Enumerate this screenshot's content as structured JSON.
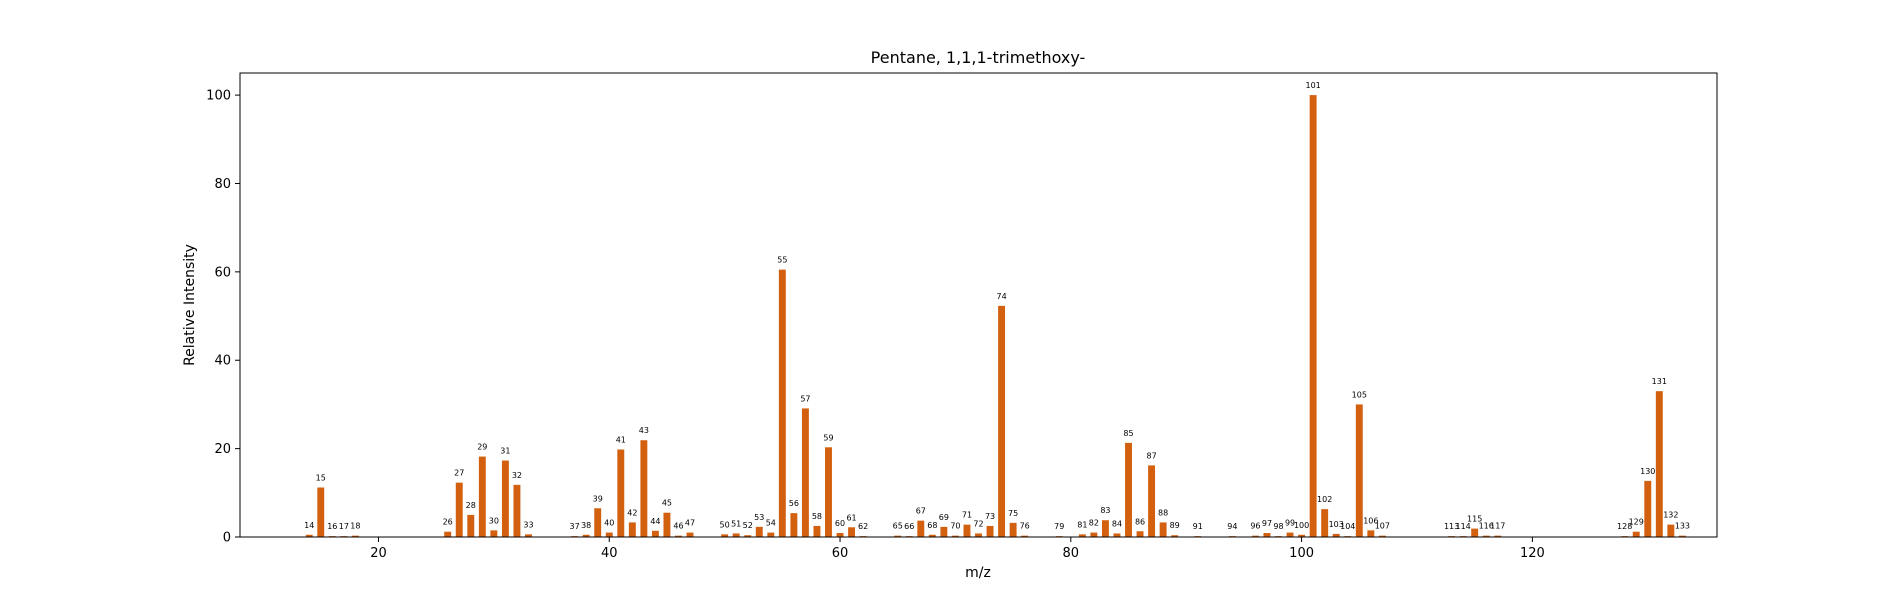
{
  "chart_data": {
    "type": "bar",
    "title": "Pentane, 1,1,1-trimethoxy-",
    "xlabel": "m/z",
    "ylabel": "Relative Intensity",
    "xlim": [
      8,
      136
    ],
    "ylim": [
      0,
      105
    ],
    "xticks": [
      20,
      40,
      60,
      80,
      100,
      120
    ],
    "yticks": [
      0,
      20,
      40,
      60,
      80,
      100
    ],
    "grid": false,
    "bar_color": "#d2600f",
    "peaks": [
      {
        "mz": 14,
        "intensity": 0.5
      },
      {
        "mz": 15,
        "intensity": 11.2
      },
      {
        "mz": 16,
        "intensity": 0.2
      },
      {
        "mz": 17,
        "intensity": 0.2
      },
      {
        "mz": 18,
        "intensity": 0.3
      },
      {
        "mz": 26,
        "intensity": 1.2
      },
      {
        "mz": 27,
        "intensity": 12.3
      },
      {
        "mz": 28,
        "intensity": 5.0
      },
      {
        "mz": 29,
        "intensity": 18.2
      },
      {
        "mz": 30,
        "intensity": 1.5
      },
      {
        "mz": 31,
        "intensity": 17.3
      },
      {
        "mz": 32,
        "intensity": 11.8
      },
      {
        "mz": 33,
        "intensity": 0.6
      },
      {
        "mz": 37,
        "intensity": 0.2
      },
      {
        "mz": 38,
        "intensity": 0.5
      },
      {
        "mz": 39,
        "intensity": 6.5
      },
      {
        "mz": 40,
        "intensity": 1.0
      },
      {
        "mz": 41,
        "intensity": 19.8
      },
      {
        "mz": 42,
        "intensity": 3.3
      },
      {
        "mz": 43,
        "intensity": 21.9
      },
      {
        "mz": 44,
        "intensity": 1.4
      },
      {
        "mz": 45,
        "intensity": 5.5
      },
      {
        "mz": 46,
        "intensity": 0.3
      },
      {
        "mz": 47,
        "intensity": 1.0
      },
      {
        "mz": 50,
        "intensity": 0.6
      },
      {
        "mz": 51,
        "intensity": 0.8
      },
      {
        "mz": 52,
        "intensity": 0.4
      },
      {
        "mz": 53,
        "intensity": 2.3
      },
      {
        "mz": 54,
        "intensity": 1.0
      },
      {
        "mz": 55,
        "intensity": 60.5
      },
      {
        "mz": 56,
        "intensity": 5.4
      },
      {
        "mz": 57,
        "intensity": 29.1
      },
      {
        "mz": 58,
        "intensity": 2.5
      },
      {
        "mz": 59,
        "intensity": 20.3
      },
      {
        "mz": 60,
        "intensity": 0.9
      },
      {
        "mz": 61,
        "intensity": 2.2
      },
      {
        "mz": 62,
        "intensity": 0.2
      },
      {
        "mz": 65,
        "intensity": 0.3
      },
      {
        "mz": 66,
        "intensity": 0.2
      },
      {
        "mz": 67,
        "intensity": 3.7
      },
      {
        "mz": 68,
        "intensity": 0.5
      },
      {
        "mz": 69,
        "intensity": 2.3
      },
      {
        "mz": 70,
        "intensity": 0.3
      },
      {
        "mz": 71,
        "intensity": 2.8
      },
      {
        "mz": 72,
        "intensity": 0.8
      },
      {
        "mz": 73,
        "intensity": 2.5
      },
      {
        "mz": 74,
        "intensity": 52.3
      },
      {
        "mz": 75,
        "intensity": 3.2
      },
      {
        "mz": 76,
        "intensity": 0.3
      },
      {
        "mz": 79,
        "intensity": 0.2
      },
      {
        "mz": 81,
        "intensity": 0.6
      },
      {
        "mz": 82,
        "intensity": 1.0
      },
      {
        "mz": 83,
        "intensity": 3.8
      },
      {
        "mz": 84,
        "intensity": 0.8
      },
      {
        "mz": 85,
        "intensity": 21.3
      },
      {
        "mz": 86,
        "intensity": 1.3
      },
      {
        "mz": 87,
        "intensity": 16.2
      },
      {
        "mz": 88,
        "intensity": 3.3
      },
      {
        "mz": 89,
        "intensity": 0.4
      },
      {
        "mz": 91,
        "intensity": 0.2
      },
      {
        "mz": 94,
        "intensity": 0.2
      },
      {
        "mz": 96,
        "intensity": 0.3
      },
      {
        "mz": 97,
        "intensity": 0.9
      },
      {
        "mz": 98,
        "intensity": 0.2
      },
      {
        "mz": 99,
        "intensity": 1.0
      },
      {
        "mz": 100,
        "intensity": 0.5
      },
      {
        "mz": 101,
        "intensity": 100
      },
      {
        "mz": 102,
        "intensity": 6.3
      },
      {
        "mz": 103,
        "intensity": 0.7
      },
      {
        "mz": 104,
        "intensity": 0.2
      },
      {
        "mz": 105,
        "intensity": 30.0
      },
      {
        "mz": 106,
        "intensity": 1.5
      },
      {
        "mz": 107,
        "intensity": 0.3
      },
      {
        "mz": 113,
        "intensity": 0.2
      },
      {
        "mz": 114,
        "intensity": 0.2
      },
      {
        "mz": 115,
        "intensity": 1.9
      },
      {
        "mz": 116,
        "intensity": 0.3
      },
      {
        "mz": 117,
        "intensity": 0.3
      },
      {
        "mz": 128,
        "intensity": 0.2
      },
      {
        "mz": 129,
        "intensity": 1.2
      },
      {
        "mz": 130,
        "intensity": 12.7
      },
      {
        "mz": 131,
        "intensity": 33.0
      },
      {
        "mz": 132,
        "intensity": 2.8
      },
      {
        "mz": 133,
        "intensity": 0.3
      }
    ]
  }
}
